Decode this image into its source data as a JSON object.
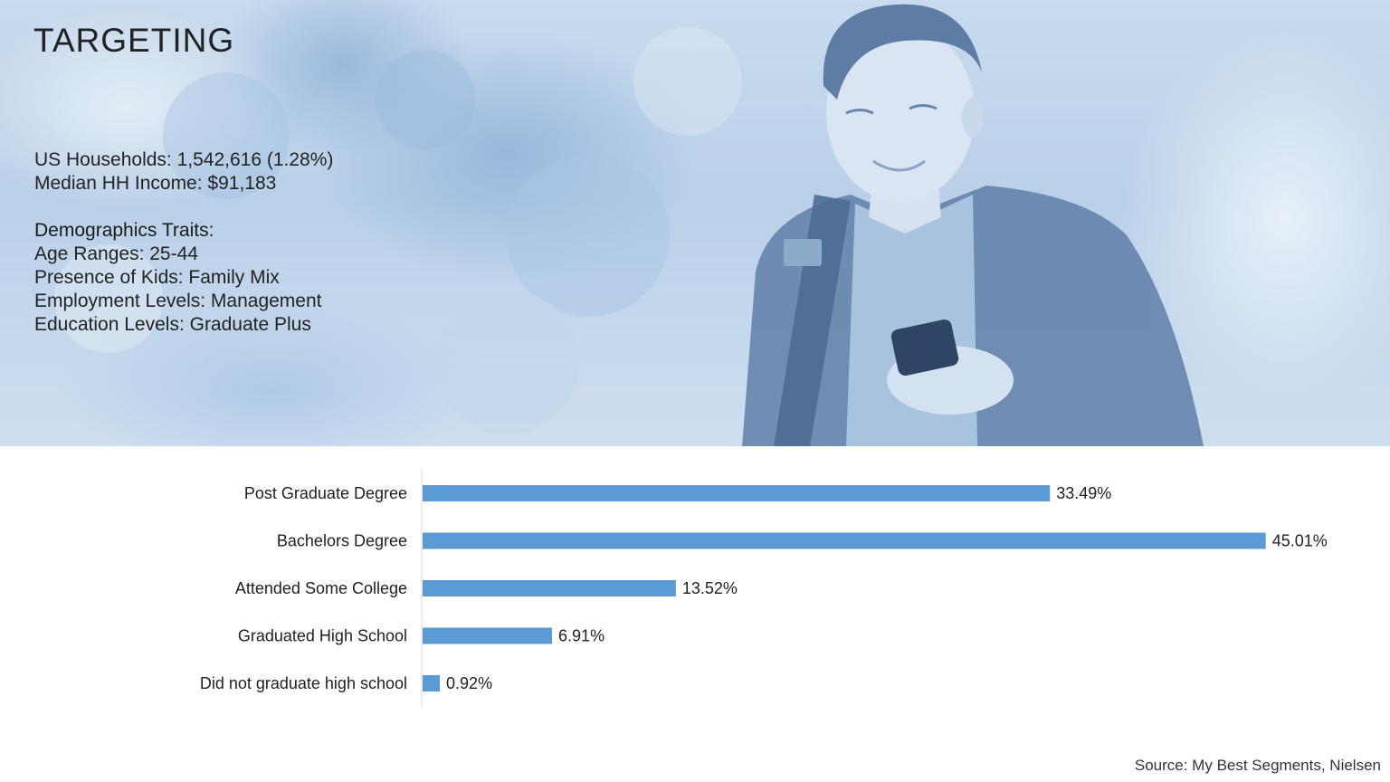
{
  "title": "TARGETING",
  "stats": {
    "households": "US Households: 1,542,616 (1.28%)",
    "income": "Median HH Income: $91,183"
  },
  "traits": {
    "heading": "Demographics Traits:",
    "age": "Age Ranges: 25-44",
    "kids": "Presence of Kids: Family Mix",
    "employment": "Employment Levels: Management",
    "education": "Education Levels: Graduate Plus"
  },
  "source": "Source: My Best Segments, Nielsen",
  "colors": {
    "bar": "#5b9bd5",
    "hero_tint": "#b9d0e8"
  },
  "chart_data": {
    "type": "bar",
    "orientation": "horizontal",
    "categories": [
      "Post Graduate Degree",
      "Bachelors Degree",
      "Attended Some College",
      "Graduated High School",
      "Did not graduate high school"
    ],
    "values": [
      33.49,
      45.01,
      13.52,
      6.91,
      0.92
    ],
    "value_labels": [
      "33.49%",
      "45.01%",
      "13.52%",
      "6.91%",
      "0.92%"
    ],
    "xlim": [
      0,
      50
    ],
    "grid": false,
    "legend": "none"
  }
}
